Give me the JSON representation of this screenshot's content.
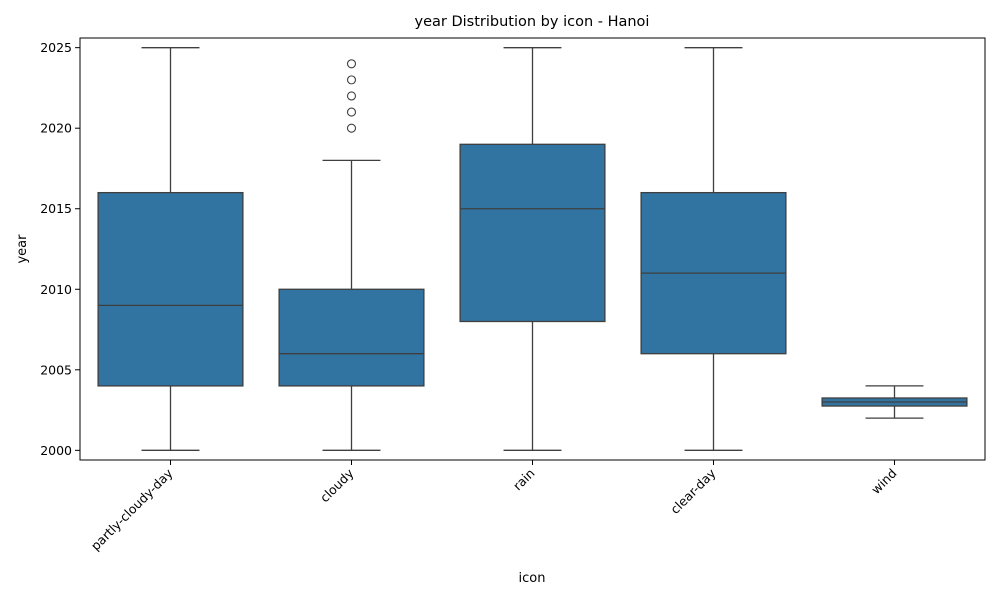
{
  "chart_data": {
    "type": "box",
    "title": "year Distribution by icon - Hanoi",
    "xlabel": "icon",
    "ylabel": "year",
    "categories": [
      "partly-cloudy-day",
      "cloudy",
      "rain",
      "clear-day",
      "wind"
    ],
    "boxes": [
      {
        "category": "partly-cloudy-day",
        "whisker_low": 2000,
        "q1": 2004,
        "median": 2009,
        "q3": 2016,
        "whisker_high": 2025,
        "outliers": []
      },
      {
        "category": "cloudy",
        "whisker_low": 2000,
        "q1": 2004,
        "median": 2006,
        "q3": 2010,
        "whisker_high": 2018,
        "outliers": [
          2020,
          2021,
          2022,
          2023,
          2024
        ]
      },
      {
        "category": "rain",
        "whisker_low": 2000,
        "q1": 2008,
        "median": 2015,
        "q3": 2019,
        "whisker_high": 2025,
        "outliers": []
      },
      {
        "category": "clear-day",
        "whisker_low": 2000,
        "q1": 2006,
        "median": 2011,
        "q3": 2016,
        "whisker_high": 2025,
        "outliers": []
      },
      {
        "category": "wind",
        "whisker_low": 2002,
        "q1": 2002.75,
        "median": 2003,
        "q3": 2003.25,
        "whisker_high": 2004,
        "outliers": []
      }
    ],
    "y_ticks": [
      2000,
      2005,
      2010,
      2015,
      2020,
      2025
    ],
    "ylim": [
      1999.4,
      2025.6
    ],
    "grid": false,
    "box_color": "#3274a1",
    "line_color": "#3f3f3f"
  }
}
